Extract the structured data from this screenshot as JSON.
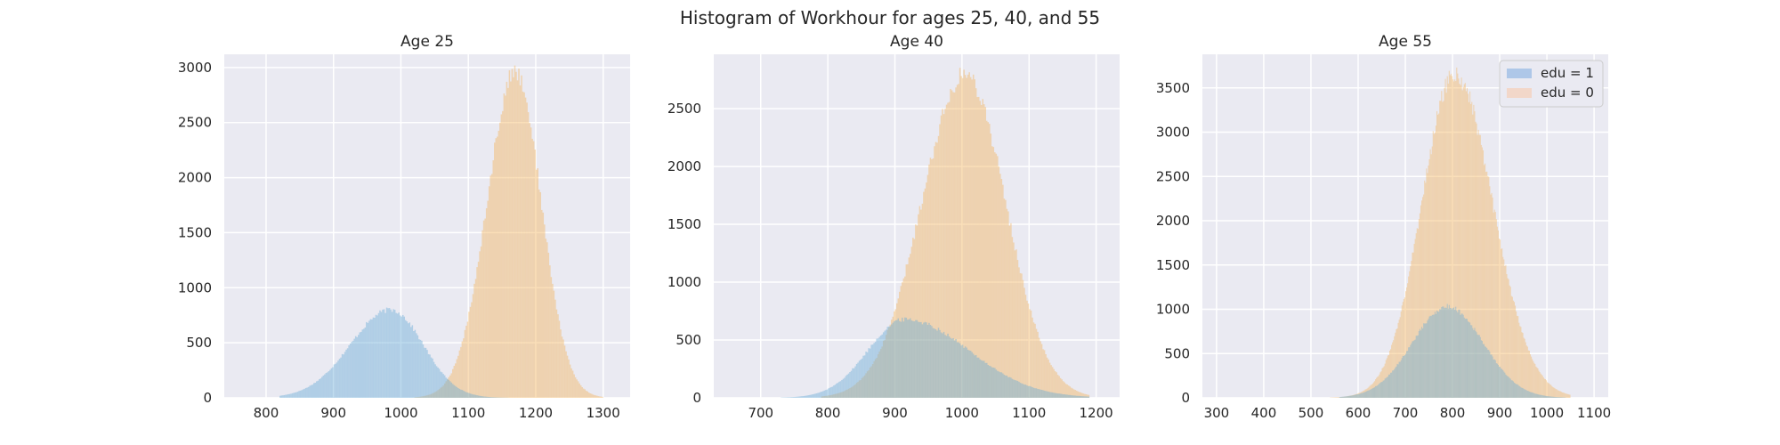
{
  "figure_title": "Histogram of Workhour for ages 25, 40, and 55",
  "colors": {
    "panel_bg": "#eaeaf2",
    "grid": "#ffffff",
    "edu1": "#6baed6",
    "edu0": "#f5b55f",
    "edu1_legend": "#aec7e8",
    "edu0_legend": "#f2d7c9"
  },
  "legend": {
    "placement": "top-right of Age 55 panel",
    "entries": [
      "edu = 1",
      "edu = 0"
    ]
  },
  "chart_data": [
    {
      "type": "histogram",
      "title": "Age 25",
      "xlabel": "",
      "ylabel": "",
      "xlim": [
        738,
        1340
      ],
      "ylim": [
        0,
        3120
      ],
      "xticks": [
        800,
        900,
        1000,
        1100,
        1200,
        1300
      ],
      "yticks": [
        0,
        500,
        1000,
        1500,
        2000,
        2500,
        3000
      ],
      "grid": true,
      "series": [
        {
          "name": "edu = 1",
          "peak_x": 985,
          "peak_count": 800,
          "std_left": 60,
          "std_right": 48,
          "range": [
            820,
            1180
          ]
        },
        {
          "name": "edu = 0",
          "peak_x": 1170,
          "peak_count": 2960,
          "std_left": 42,
          "std_right": 38,
          "range": [
            1020,
            1300
          ]
        }
      ]
    },
    {
      "type": "histogram",
      "title": "Age 40",
      "xlabel": "",
      "ylabel": "",
      "xlim": [
        630,
        1235
      ],
      "ylim": [
        0,
        2970
      ],
      "xticks": [
        700,
        800,
        900,
        1000,
        1100,
        1200
      ],
      "yticks": [
        0,
        500,
        1000,
        1500,
        2000,
        2500
      ],
      "grid": true,
      "series": [
        {
          "name": "edu = 1",
          "peak_x": 915,
          "peak_count": 680,
          "std_left": 55,
          "std_right": 95,
          "range": [
            730,
            1190
          ]
        },
        {
          "name": "edu = 0",
          "peak_x": 1005,
          "peak_count": 2800,
          "std_left": 65,
          "std_right": 60,
          "range": [
            790,
            1190
          ]
        }
      ]
    },
    {
      "type": "histogram",
      "title": "Age 55",
      "xlabel": "",
      "ylabel": "",
      "xlim": [
        270,
        1130
      ],
      "ylim": [
        0,
        3880
      ],
      "xticks": [
        300,
        400,
        500,
        600,
        700,
        800,
        900,
        1000,
        1100
      ],
      "yticks": [
        0,
        500,
        1000,
        1500,
        2000,
        2500,
        3000,
        3500
      ],
      "grid": true,
      "series": [
        {
          "name": "edu = 1",
          "peak_x": 790,
          "peak_count": 1030,
          "std_left": 75,
          "std_right": 75,
          "range": [
            560,
            1040
          ]
        },
        {
          "name": "edu = 0",
          "peak_x": 805,
          "peak_count": 3650,
          "std_left": 70,
          "std_right": 80,
          "range": [
            540,
            1050
          ]
        }
      ]
    }
  ]
}
